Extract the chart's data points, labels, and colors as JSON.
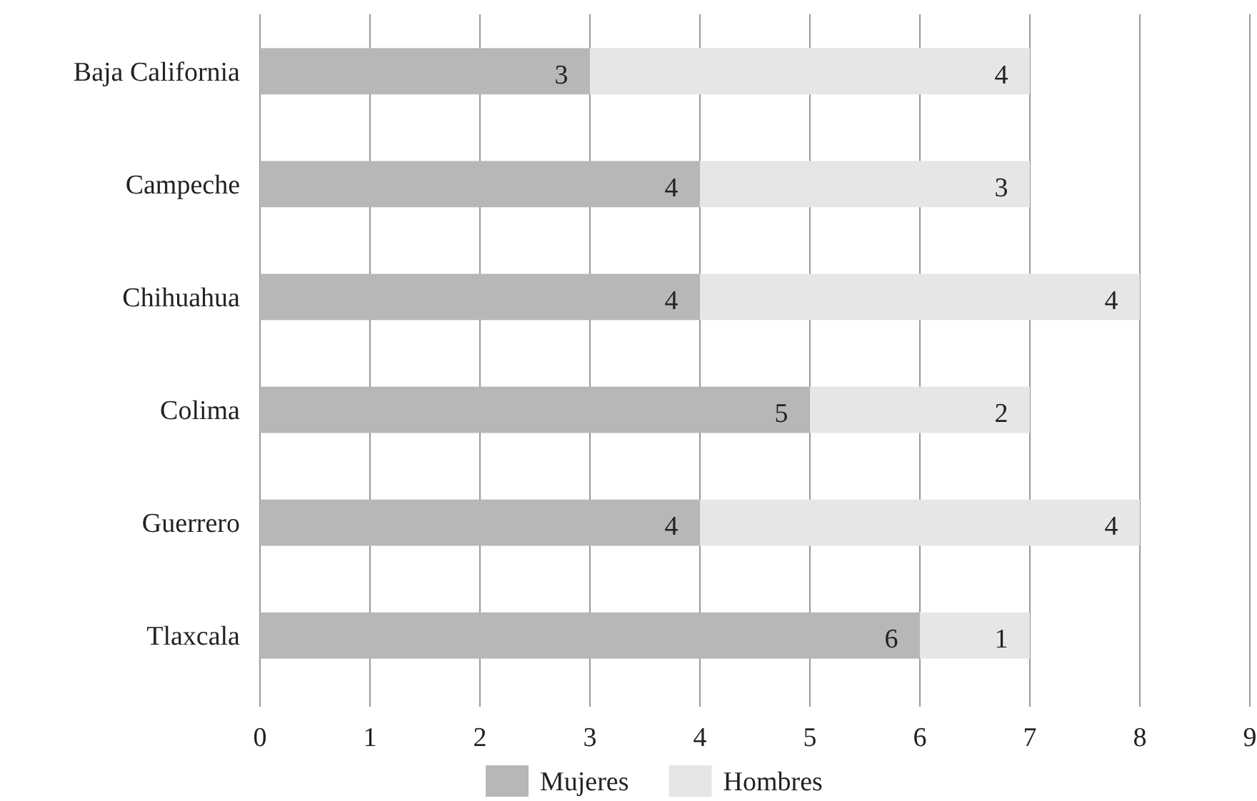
{
  "chart_data": {
    "type": "bar",
    "orientation": "horizontal",
    "stacked": true,
    "categories": [
      "Baja California",
      "Campeche",
      "Chihuahua",
      "Colima",
      "Guerrero",
      "Tlaxcala"
    ],
    "series": [
      {
        "name": "Mujeres",
        "color": "#b7b7b9",
        "values": [
          3,
          4,
          4,
          5,
          4,
          6
        ]
      },
      {
        "name": "Hombres",
        "color": "#e6e6e7",
        "values": [
          4,
          3,
          4,
          2,
          4,
          1
        ]
      }
    ],
    "xlim": [
      0,
      9
    ],
    "xticks": [
      0,
      1,
      2,
      3,
      4,
      5,
      6,
      7,
      8,
      9
    ],
    "grid": "x",
    "legend": "bottom",
    "data_labels": true
  }
}
